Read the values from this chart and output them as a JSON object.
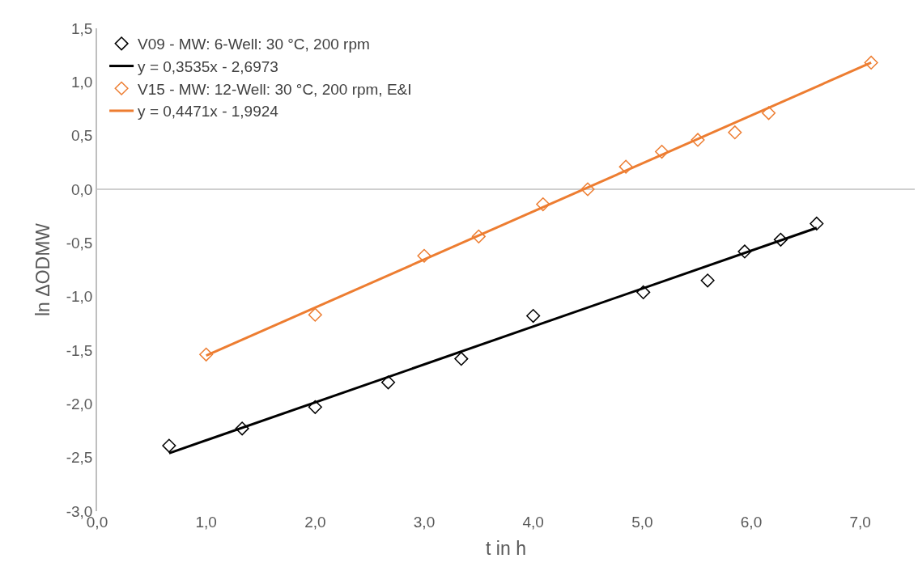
{
  "chart_data": {
    "type": "scatter",
    "xlabel": "t in h",
    "ylabel": "ln ΔODMW",
    "xlim": [
      0,
      7.5
    ],
    "xticks": [
      {
        "value": 0,
        "label": "0,0"
      },
      {
        "value": 1,
        "label": "1,0"
      },
      {
        "value": 2,
        "label": "2,0"
      },
      {
        "value": 3,
        "label": "3,0"
      },
      {
        "value": 4,
        "label": "4,0"
      },
      {
        "value": 5,
        "label": "5,0"
      },
      {
        "value": 6,
        "label": "6,0"
      },
      {
        "value": 7,
        "label": "7,0"
      }
    ],
    "ylim": [
      -3,
      1.5
    ],
    "yticks": [
      {
        "value": -3,
        "label": "-3,0"
      },
      {
        "value": -2.5,
        "label": "-2,5"
      },
      {
        "value": -2,
        "label": "-2,0"
      },
      {
        "value": -1.5,
        "label": "-1,5"
      },
      {
        "value": -1,
        "label": "-1,0"
      },
      {
        "value": -0.5,
        "label": "-0,5"
      },
      {
        "value": 0,
        "label": "0,0"
      },
      {
        "value": 0.5,
        "label": "0,5"
      },
      {
        "value": 1,
        "label": "1,0"
      },
      {
        "value": 1.5,
        "label": "1,5"
      }
    ],
    "grid": false,
    "legend": "top left",
    "marker": "diamond",
    "ref_lines": [
      {
        "axis": "y",
        "value": 0,
        "color": "#bfbfbf"
      }
    ],
    "series": [
      {
        "name": "V09 - MW: 6-Well: 30 °C, 200 rpm",
        "color": "#000000",
        "x": [
          0.66,
          1.33,
          2.0,
          2.67,
          3.34,
          4.0,
          5.01,
          5.6,
          5.94,
          6.27,
          6.6
        ],
        "values": [
          -2.39,
          -2.23,
          -2.03,
          -1.8,
          -1.58,
          -1.18,
          -0.96,
          -0.85,
          -0.58,
          -0.47,
          -0.32
        ]
      },
      {
        "name": "y = 0,3535x - 2,6973",
        "type": "line",
        "marker": "none",
        "line_style": "solid",
        "color": "#000000",
        "x": [
          0.66,
          6.6
        ],
        "values": [
          -2.46,
          -0.36
        ]
      },
      {
        "name": "V15 - MW: 12-Well: 30 °C, 200 rpm, E&I",
        "color": "#ed7d31",
        "x": [
          1.0,
          2.0,
          3.0,
          3.5,
          4.09,
          4.5,
          4.85,
          5.18,
          5.51,
          5.85,
          6.16,
          7.1
        ],
        "values": [
          -1.54,
          -1.17,
          -0.62,
          -0.44,
          -0.14,
          0.0,
          0.21,
          0.35,
          0.46,
          0.53,
          0.71,
          1.18
        ]
      },
      {
        "name": "y = 0,4471x - 1,9924",
        "type": "line",
        "marker": "none",
        "line_style": "solid",
        "color": "#ed7d31",
        "x": [
          1.0,
          7.1
        ],
        "values": [
          -1.55,
          1.18
        ]
      }
    ]
  }
}
